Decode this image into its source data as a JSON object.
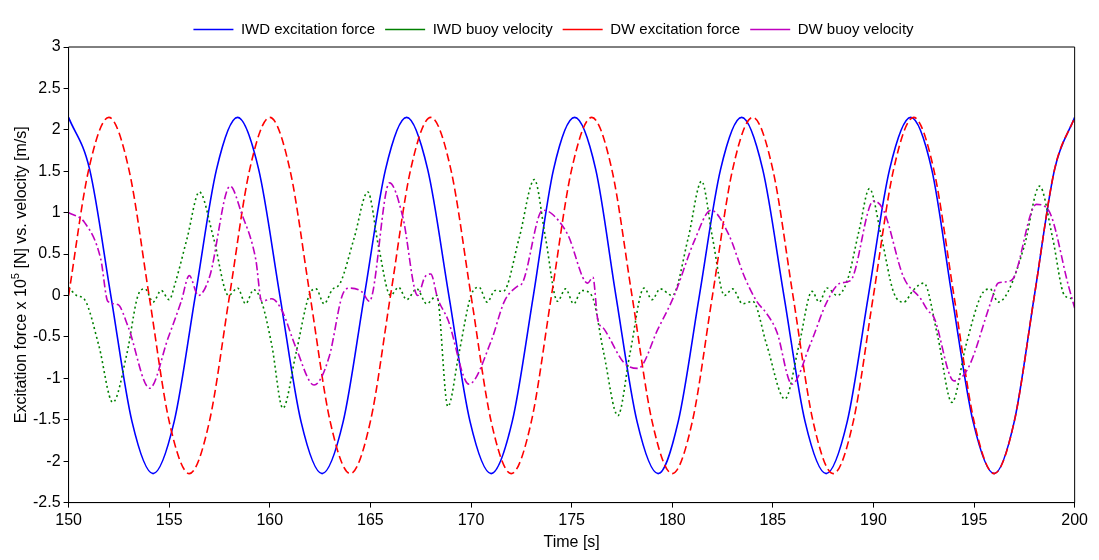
{
  "chart_data": {
    "type": "line",
    "xlabel": "Time [s]",
    "ylabel": "Excitation force x 10$^{5}$ [N] vs. velocity [m/s]",
    "xlim": [
      150,
      200
    ],
    "xticks": [
      150,
      155,
      160,
      165,
      170,
      175,
      180,
      185,
      190,
      195,
      200
    ],
    "ylim": [
      -2.5,
      3
    ],
    "yticks": [
      -2.5,
      -2,
      -1.5,
      -1,
      -0.5,
      0,
      0.5,
      1,
      1.5,
      2,
      2.5,
      3
    ],
    "grid": false,
    "legend": "top",
    "series": [
      {
        "name": "IWD excitation force",
        "color": "#0000ff",
        "line_style": "solid",
        "x": [
          150,
          151.05,
          152.1,
          153.15,
          154.2,
          155.25,
          156.3,
          157.35,
          158.4,
          159.45,
          160.5,
          161.55,
          162.6,
          163.65,
          164.7,
          165.75,
          166.8,
          167.85,
          168.9,
          169.95,
          171,
          172.05,
          173.1,
          174.1,
          175.15,
          176.2,
          177.2,
          178.25,
          179.3,
          180.3,
          181.35,
          182.4,
          183.45,
          184.5,
          185.55,
          186.6,
          187.65,
          188.7,
          189.75,
          190.8,
          191.85,
          192.9,
          193.9,
          194.95,
          196,
          197,
          198,
          199,
          200
        ],
        "values": [
          2.15,
          1.52,
          0,
          -1.52,
          -2.15,
          -1.52,
          0,
          1.52,
          2.15,
          1.52,
          0,
          -1.52,
          -2.15,
          -1.52,
          0,
          1.52,
          2.15,
          1.52,
          0,
          -1.52,
          -2.15,
          -1.52,
          0,
          1.52,
          2.15,
          1.52,
          0,
          -1.52,
          -2.15,
          -1.52,
          0,
          1.52,
          2.15,
          1.52,
          0,
          -1.52,
          -2.15,
          -1.52,
          0,
          1.52,
          2.15,
          1.52,
          0,
          -1.52,
          -2.15,
          -1.52,
          0,
          1.52,
          2.15
        ]
      },
      {
        "name": "IWD buoy velocity",
        "color": "#008000",
        "line_style": "dotted",
        "x": [
          150,
          150.4,
          150.8,
          151.5,
          152.2,
          152.9,
          153.45,
          153.8,
          154.2,
          154.6,
          155,
          155.3,
          155.9,
          156.5,
          157.2,
          157.95,
          158.4,
          158.8,
          159.2,
          159.6,
          160.1,
          160.65,
          161.3,
          161.95,
          162.3,
          162.7,
          163.1,
          163.5,
          164.2,
          164.87,
          165.4,
          166,
          166.4,
          166.8,
          167.3,
          167.8,
          168.3,
          168.85,
          169.4,
          170,
          170.4,
          170.8,
          171.2,
          171.6,
          172.4,
          173.15,
          173.7,
          174.3,
          174.7,
          175.1,
          175.5,
          176,
          176.6,
          177.3,
          177.9,
          178.6,
          179,
          179.4,
          180,
          180.8,
          181.46,
          182,
          182.6,
          183,
          183.5,
          184,
          184.7,
          185.6,
          186.3,
          186.95,
          187.3,
          187.7,
          188.2,
          188.7,
          189.3,
          189.8,
          190.4,
          191,
          191.5,
          192,
          192.5,
          193.2,
          193.9,
          194.6,
          195.35,
          195.8,
          196.2,
          196.7,
          197.5,
          198.26,
          198.9,
          199.5,
          200
        ],
        "values": [
          0.1,
          0,
          -0.05,
          -0.6,
          -1.29,
          -0.7,
          0,
          0.08,
          -0.08,
          0.06,
          -0.05,
          0.15,
          0.7,
          1.25,
          0.7,
          0,
          0.09,
          -0.1,
          0.07,
          -0.08,
          -0.6,
          -1.36,
          -0.7,
          0,
          0.08,
          -0.1,
          0.07,
          0.15,
          0.7,
          1.25,
          0.6,
          0,
          0.1,
          -0.05,
          0.08,
          -0.1,
          0,
          -1.34,
          -0.7,
          0,
          0.1,
          -0.08,
          0.06,
          0.05,
          0.7,
          1.4,
          0.7,
          -0.07,
          0.08,
          -0.1,
          0.06,
          0,
          -0.7,
          -1.45,
          -0.7,
          0.09,
          -0.05,
          0.08,
          0,
          0.7,
          1.38,
          0.7,
          0,
          0.08,
          -0.1,
          -0.07,
          -0.6,
          -1.25,
          -0.6,
          0.05,
          -0.08,
          0.09,
          0,
          0.18,
          0.8,
          1.29,
          0.7,
          0.04,
          -0.08,
          0.07,
          0.15,
          -0.5,
          -1.29,
          -0.6,
          0,
          0.08,
          -0.08,
          0.05,
          0.6,
          1.32,
          0.7,
          0,
          -0.04
        ]
      },
      {
        "name": "DW excitation force",
        "color": "#ff0000",
        "line_style": "dashed",
        "x": [
          150,
          151,
          152,
          153,
          154,
          155,
          156,
          157,
          158,
          159,
          160,
          161,
          162,
          163,
          164,
          165,
          166,
          167,
          168,
          169,
          170,
          171,
          172,
          173,
          174,
          175,
          176,
          177,
          178,
          179,
          180,
          181,
          182,
          183,
          184,
          185,
          186,
          187,
          188,
          189,
          190,
          191,
          192,
          193,
          194,
          195,
          196,
          197,
          198,
          199,
          200
        ],
        "values": [
          0,
          1.52,
          2.15,
          1.52,
          0,
          -1.52,
          -2.15,
          -1.52,
          0,
          1.52,
          2.15,
          1.52,
          0,
          -1.52,
          -2.15,
          -1.52,
          0,
          1.52,
          2.15,
          1.52,
          0,
          -1.52,
          -2.15,
          -1.52,
          0,
          1.52,
          2.15,
          1.52,
          0,
          -1.52,
          -2.15,
          -1.52,
          0,
          1.52,
          2.15,
          1.52,
          0,
          -1.52,
          -2.15,
          -1.52,
          0,
          1.52,
          2.15,
          1.52,
          0,
          -1.52,
          -2.15,
          -1.52,
          0,
          1.52,
          2.15
        ]
      },
      {
        "name": "DW buoy velocity",
        "color": "#bf00bf",
        "line_style": "dashdot",
        "x": [
          150,
          150.8,
          151.6,
          151.95,
          152.45,
          152.95,
          154.03,
          154.95,
          155.6,
          156,
          156.45,
          157,
          158.03,
          158.6,
          159.3,
          159.6,
          160.1,
          160.6,
          161.3,
          162.2,
          162.95,
          163.6,
          163.95,
          164.6,
          164.95,
          165.95,
          166.6,
          167.35,
          167.7,
          168,
          168.35,
          168.85,
          169.9,
          171,
          171.66,
          172.3,
          172.55,
          173.57,
          174,
          174.8,
          175.8,
          176.06,
          176.3,
          176.6,
          177.6,
          178.3,
          179.3,
          180.1,
          181.1,
          181.93,
          182.8,
          183.6,
          184.2,
          184.7,
          185.2,
          185.95,
          186.86,
          187.7,
          188.36,
          188.86,
          190,
          190.5,
          191.5,
          192.35,
          192.7,
          193,
          194,
          194.7,
          195.85,
          196.2,
          196.85,
          198.1,
          198.7,
          199.7,
          200
        ],
        "values": [
          1,
          0.88,
          0.44,
          -0.07,
          -0.11,
          -0.37,
          -1.12,
          -0.51,
          -0.07,
          0.24,
          0,
          0.22,
          1.32,
          0.99,
          0.44,
          -0.07,
          -0.04,
          -0.18,
          -0.63,
          -1.08,
          -0.74,
          0,
          0.09,
          0.04,
          -0.07,
          1.36,
          0.96,
          0,
          0.22,
          0.26,
          -0.04,
          -0.29,
          -1.07,
          -0.55,
          -0.07,
          0.11,
          0.15,
          1.03,
          0.99,
          0.74,
          0.15,
          0.22,
          -0.29,
          -0.4,
          -0.81,
          -0.88,
          -0.4,
          0,
          0.66,
          1.03,
          0.74,
          0.22,
          -0.07,
          -0.22,
          -0.44,
          -1.07,
          -0.59,
          -0.07,
          0.15,
          0.18,
          1.14,
          1.03,
          0.22,
          -0.04,
          -0.18,
          -0.26,
          -1.03,
          -0.88,
          -0.07,
          0.15,
          0.18,
          1.1,
          1.03,
          0.11,
          -0.15
        ]
      }
    ]
  }
}
